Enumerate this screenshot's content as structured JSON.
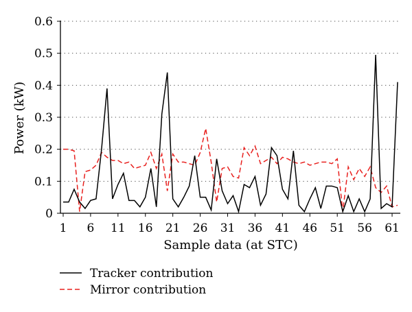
{
  "chart_data": {
    "type": "line",
    "xlabel": "Sample data (at STC)",
    "ylabel": "Power (kW)",
    "x": [
      1,
      2,
      3,
      4,
      5,
      6,
      7,
      8,
      9,
      10,
      11,
      12,
      13,
      14,
      15,
      16,
      17,
      18,
      19,
      20,
      21,
      22,
      23,
      24,
      25,
      26,
      27,
      28,
      29,
      30,
      31,
      32,
      33,
      34,
      35,
      36,
      37,
      38,
      39,
      40,
      41,
      42,
      43,
      44,
      45,
      46,
      47,
      48,
      49,
      50,
      51,
      52,
      53,
      54,
      55,
      56,
      57,
      58,
      59,
      60,
      61,
      62
    ],
    "x_ticks": [
      1,
      6,
      11,
      16,
      21,
      26,
      31,
      36,
      41,
      46,
      51,
      56,
      61
    ],
    "y_ticks": [
      0,
      0.1,
      0.2,
      0.3,
      0.4,
      0.5,
      0.6
    ],
    "y_tick_labels": [
      "0",
      "0.1",
      "0.2",
      "0.3",
      "0.4",
      "0.5",
      "0.6"
    ],
    "xlim": [
      0.5,
      62.5
    ],
    "ylim": [
      0,
      0.6
    ],
    "grid": "horizontal dotted",
    "legend_position": "bottom-left, below chart",
    "series": [
      {
        "name": "Tracker contribution",
        "color": "#000000",
        "dash": "solid",
        "values": [
          0.035,
          0.035,
          0.075,
          0.035,
          0.015,
          0.04,
          0.045,
          0.2,
          0.39,
          0.045,
          0.09,
          0.125,
          0.04,
          0.04,
          0.02,
          0.05,
          0.14,
          0.02,
          0.31,
          0.44,
          0.045,
          0.02,
          0.05,
          0.085,
          0.18,
          0.05,
          0.05,
          0.01,
          0.17,
          0.07,
          0.03,
          0.055,
          0.005,
          0.09,
          0.08,
          0.115,
          0.025,
          0.06,
          0.205,
          0.18,
          0.075,
          0.045,
          0.195,
          0.025,
          0.005,
          0.045,
          0.08,
          0.015,
          0.085,
          0.085,
          0.08,
          0.005,
          0.055,
          0.005,
          0.045,
          0.005,
          0.045,
          0.495,
          0.015,
          0.03,
          0.02,
          0.41
        ]
      },
      {
        "name": "Mirror contribution",
        "color": "#e8201e",
        "dash": "dashed",
        "values": [
          0.2,
          0.2,
          0.195,
          0.005,
          0.13,
          0.135,
          0.15,
          0.19,
          0.175,
          0.165,
          0.165,
          0.155,
          0.16,
          0.14,
          0.145,
          0.15,
          0.19,
          0.14,
          0.185,
          0.07,
          0.185,
          0.16,
          0.16,
          0.155,
          0.15,
          0.19,
          0.265,
          0.16,
          0.035,
          0.14,
          0.145,
          0.115,
          0.11,
          0.205,
          0.18,
          0.21,
          0.155,
          0.165,
          0.175,
          0.155,
          0.175,
          0.17,
          0.16,
          0.155,
          0.16,
          0.15,
          0.155,
          0.16,
          0.16,
          0.155,
          0.17,
          0.005,
          0.145,
          0.105,
          0.14,
          0.115,
          0.145,
          0.08,
          0.065,
          0.085,
          0.02,
          0.025
        ]
      }
    ]
  }
}
